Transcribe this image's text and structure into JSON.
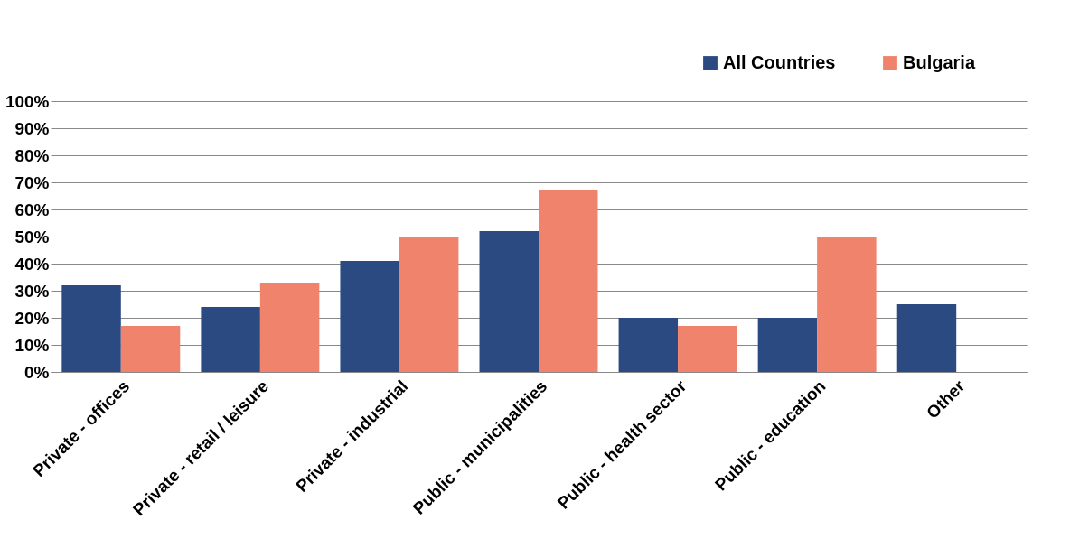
{
  "chart_data": {
    "type": "bar",
    "categories": [
      "Private - offices",
      "Private - retail / leisure",
      "Private - industrial",
      "Public - municipalities",
      "Public - health sector",
      "Public - education",
      "Other"
    ],
    "series": [
      {
        "name": "All Countries",
        "color": "#2b4a82",
        "values": [
          32,
          24,
          41,
          52,
          20,
          20,
          25
        ]
      },
      {
        "name": "Bulgaria",
        "color": "#ef836b",
        "values": [
          17,
          33,
          50,
          67,
          17,
          50,
          0
        ]
      }
    ],
    "ylim": [
      0,
      100
    ],
    "yticks": [
      {
        "value": 0,
        "label": "0%"
      },
      {
        "value": 10,
        "label": "10%"
      },
      {
        "value": 20,
        "label": "20%"
      },
      {
        "value": 30,
        "label": "30%"
      },
      {
        "value": 40,
        "label": "40%"
      },
      {
        "value": 50,
        "label": "50%"
      },
      {
        "value": 60,
        "label": "60%"
      },
      {
        "value": 70,
        "label": "70%"
      },
      {
        "value": 80,
        "label": "80%"
      },
      {
        "value": 90,
        "label": "90%"
      },
      {
        "value": 100,
        "label": "100%"
      }
    ],
    "grid": "y",
    "legend": "top right"
  }
}
